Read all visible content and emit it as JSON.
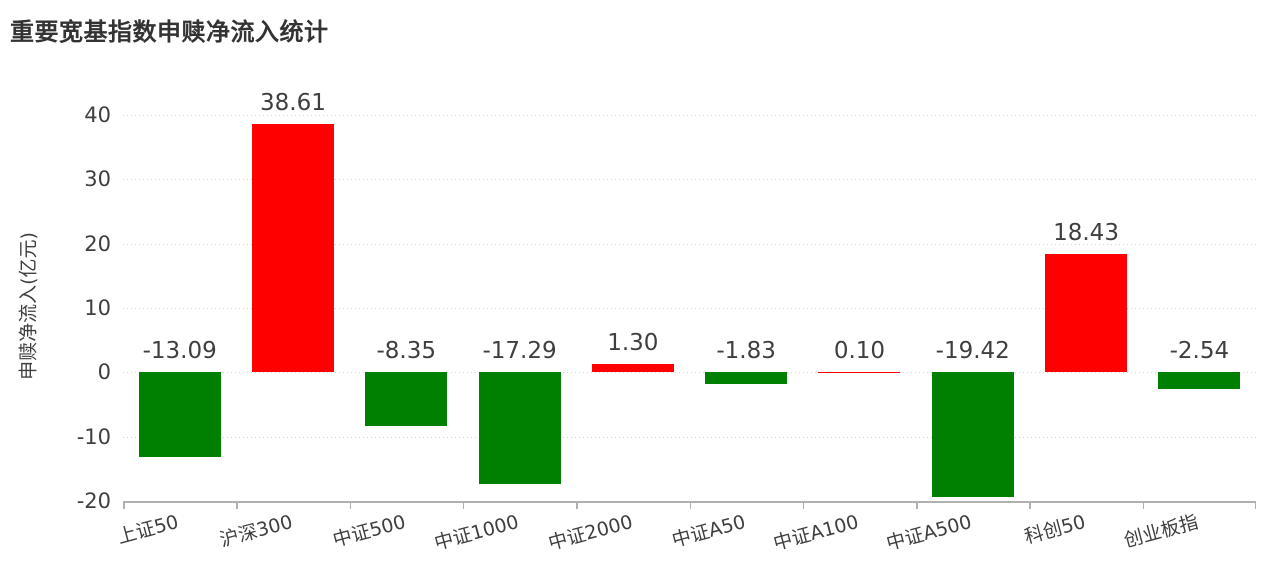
{
  "chart_data": {
    "type": "bar",
    "title": "重要宽基指数申赎净流入统计",
    "ylabel": "申赎净流入(亿元)",
    "xlabel": "",
    "categories": [
      "上证50",
      "沪深300",
      "中证500",
      "中证1000",
      "中证2000",
      "中证A50",
      "中证A100",
      "中证A500",
      "科创50",
      "创业板指"
    ],
    "values": [
      -13.09,
      38.61,
      -8.35,
      -17.29,
      1.3,
      -1.83,
      0.1,
      -19.42,
      18.43,
      -2.54
    ],
    "value_labels": [
      "-13.09",
      "38.61",
      "-8.35",
      "-17.29",
      "1.30",
      "-1.83",
      "0.10",
      "-19.42",
      "18.43",
      "-2.54"
    ],
    "yticks": [
      -20,
      -10,
      0,
      10,
      20,
      30,
      40
    ],
    "ylim": [
      -20,
      40
    ],
    "grid": "horizontal dotted",
    "legend": "none",
    "xtick_rotation_deg": 15,
    "colors": {
      "positive_bar": "#ff0000",
      "negative_bar": "#008000",
      "label_text": "#3f3f3f",
      "title_text": "#333333",
      "axis_line": "#b0b0b0",
      "gridline": "#cfcfcf",
      "background": "#ffffff"
    }
  }
}
